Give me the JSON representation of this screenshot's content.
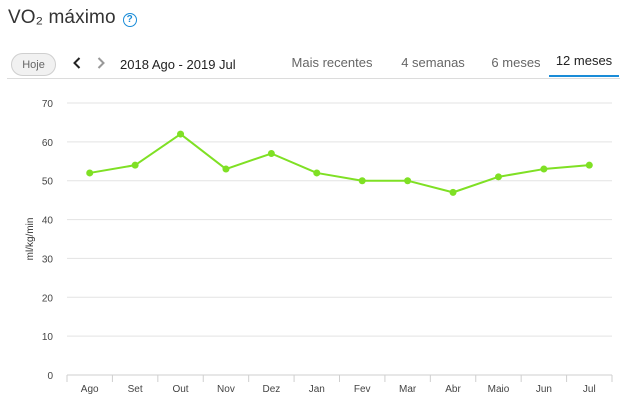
{
  "header": {
    "title": "VO₂ máximo",
    "help_glyph": "?"
  },
  "toolbar": {
    "today_label": "Hoje",
    "range_label": "2018 Ago - 2019 Jul",
    "tabs": [
      {
        "label": "Mais recentes",
        "active": false
      },
      {
        "label": "4 semanas",
        "active": false
      },
      {
        "label": "6 meses",
        "active": false
      },
      {
        "label": "12 meses",
        "active": true
      }
    ]
  },
  "colors": {
    "line": "#7fe024",
    "accent": "#1a8cd8",
    "grid": "#e3e3e3"
  },
  "chart_data": {
    "type": "line",
    "ylabel": "ml/kg/min",
    "xlabel": "",
    "ylim": [
      0,
      70
    ],
    "yticks": [
      0,
      10,
      20,
      30,
      40,
      50,
      60,
      70
    ],
    "categories": [
      "Ago",
      "Set",
      "Out",
      "Nov",
      "Dez",
      "Jan",
      "Fev",
      "Mar",
      "Abr",
      "Maio",
      "Jun",
      "Jul"
    ],
    "series": [
      {
        "values": [
          52,
          54,
          62,
          53,
          57,
          52,
          50,
          50,
          47,
          51,
          53,
          54
        ]
      }
    ],
    "grid": true
  }
}
